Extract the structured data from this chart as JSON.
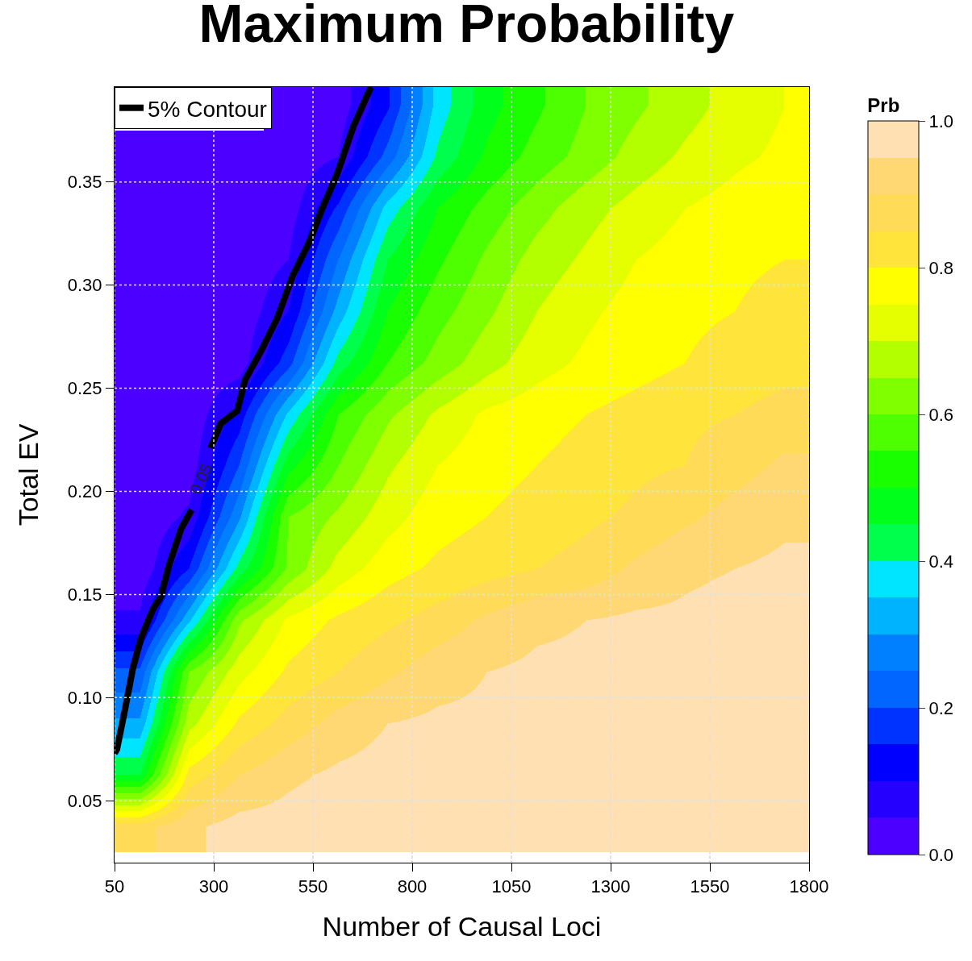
{
  "chart_data": {
    "type": "heatmap",
    "title": "Maximum Probability",
    "xlabel": "Number of Causal Loci",
    "ylabel": "Total EV",
    "clabel": "Prb",
    "x": [
      112.5,
      237.5,
      362.5,
      487.5,
      612.5,
      737.5,
      862.5,
      987.5,
      1112.5,
      1237.5,
      1362.5,
      1487.5,
      1612.5,
      1737.5
    ],
    "y": [
      0.3875,
      0.3625,
      0.3375,
      0.3125,
      0.2875,
      0.2625,
      0.2375,
      0.2125,
      0.1875,
      0.1625,
      0.1375,
      0.1125,
      0.0875,
      0.0625,
      0.0375
    ],
    "cells": [
      [
        null,
        null,
        null,
        0.01,
        0.02,
        0.14,
        0.37,
        0.48,
        0.54,
        0.6,
        0.64,
        0.68,
        0.72,
        0.75
      ],
      [
        0.01,
        0.01,
        0.01,
        0.01,
        0.05,
        0.22,
        0.41,
        0.51,
        0.57,
        0.62,
        0.67,
        0.71,
        0.74,
        0.76
      ],
      [
        0.01,
        0.01,
        0.01,
        0.02,
        0.16,
        0.37,
        0.5,
        0.57,
        0.63,
        0.68,
        0.72,
        0.75,
        0.77,
        0.79
      ],
      [
        0.01,
        0.01,
        0.01,
        0.05,
        0.25,
        0.45,
        0.54,
        0.61,
        0.67,
        0.71,
        0.75,
        0.77,
        0.79,
        0.8
      ],
      [
        0.01,
        0.01,
        0.01,
        0.1,
        0.32,
        0.5,
        0.58,
        0.64,
        0.7,
        0.74,
        0.77,
        0.79,
        0.8,
        0.82
      ],
      [
        0.01,
        0.01,
        0.02,
        0.18,
        0.42,
        0.55,
        0.62,
        0.68,
        0.73,
        0.76,
        0.78,
        0.8,
        0.82,
        0.83
      ],
      [
        0.01,
        0.01,
        0.12,
        0.36,
        0.55,
        0.64,
        0.71,
        0.76,
        0.78,
        0.8,
        0.82,
        0.84,
        0.85,
        0.87
      ],
      [
        0.01,
        0.02,
        0.2,
        0.48,
        0.6,
        0.69,
        0.75,
        0.78,
        0.8,
        0.82,
        0.84,
        0.85,
        0.88,
        0.91
      ],
      [
        0.01,
        0.06,
        0.29,
        0.6,
        0.66,
        0.73,
        0.78,
        0.8,
        0.82,
        0.84,
        0.86,
        0.89,
        0.92,
        0.94
      ],
      [
        0.01,
        0.15,
        0.42,
        0.61,
        0.72,
        0.78,
        0.81,
        0.83,
        0.85,
        0.87,
        0.91,
        0.94,
        0.95,
        0.96
      ],
      [
        0.06,
        0.34,
        0.64,
        0.76,
        0.81,
        0.84,
        0.87,
        0.91,
        0.94,
        0.95,
        0.96,
        0.96,
        0.97,
        0.97
      ],
      [
        0.21,
        0.6,
        0.73,
        0.81,
        0.85,
        0.89,
        0.93,
        0.95,
        0.96,
        0.96,
        0.96,
        0.97,
        0.97,
        0.97
      ],
      [
        0.31,
        0.68,
        0.81,
        0.87,
        0.92,
        0.95,
        0.96,
        0.96,
        0.97,
        0.97,
        0.97,
        0.98,
        0.98,
        0.98
      ],
      [
        0.45,
        0.82,
        0.9,
        0.94,
        0.96,
        0.97,
        0.97,
        0.97,
        0.97,
        0.98,
        0.98,
        0.98,
        0.98,
        0.98
      ],
      [
        0.88,
        0.94,
        0.97,
        0.97,
        0.98,
        0.98,
        0.99,
        0.99,
        0.99,
        0.99,
        0.99,
        0.99,
        0.99,
        0.99
      ]
    ],
    "colors": [
      "#4c00ff",
      "#2600ff",
      "#0000ff",
      "#0033ff",
      "#0066ff",
      "#0080ff",
      "#00b3ff",
      "#00e5ff",
      "#00ff4d",
      "#00ff1a",
      "#1aff00",
      "#4dff00",
      "#80ff00",
      "#b3ff00",
      "#e6ff00",
      "#ffff00",
      "#ffe53b",
      "#ffdb58",
      "#ffd873",
      "#ffe0b3"
    ],
    "clim": [
      0,
      1
    ],
    "cticks": [
      {
        "value": 0,
        "label": "0.0"
      },
      0.2,
      0.4,
      0.6,
      0.8,
      {
        "value": 1,
        "label": "1.0"
      }
    ],
    "xlim": [
      50,
      1800
    ],
    "xticks": [
      50,
      300,
      550,
      800,
      1050,
      1300,
      1550,
      1800
    ],
    "ylim": [
      0.02,
      0.396
    ],
    "yticks": [
      0.05,
      {
        "value": 0.1,
        "label": "0.10"
      },
      0.15,
      {
        "value": 0.2,
        "label": "0.20"
      },
      0.25,
      {
        "value": 0.3,
        "label": "0.30"
      },
      0.35
    ],
    "grid": true,
    "legend": "top left",
    "series": [
      {
        "type": "line",
        "name": "5% Contour",
        "color": "#000000",
        "x": [
          50,
          56,
          76,
          96,
          117,
          147,
          167,
          187,
          218,
          244,
          268,
          292,
          318,
          359,
          379,
          419,
          460,
          500,
          541,
          571,
          611,
          652,
          696
        ],
        "values": [
          0.073,
          0.075,
          0.094,
          0.114,
          0.129,
          0.143,
          0.149,
          0.164,
          0.182,
          0.191,
          null,
          0.221,
          0.233,
          0.239,
          0.254,
          0.268,
          0.284,
          0.305,
          0.321,
          0.336,
          0.354,
          0.377,
          0.396
        ]
      }
    ],
    "annotations": [
      "0.05"
    ]
  }
}
